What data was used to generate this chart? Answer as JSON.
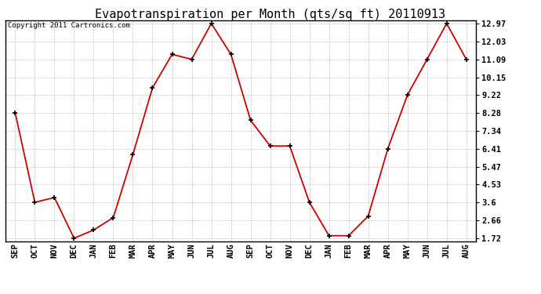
{
  "title": "Evapotranspiration per Month (qts/sq ft) 20110913",
  "copyright": "Copyright 2011 Cartronics.com",
  "months": [
    "SEP",
    "OCT",
    "NOV",
    "DEC",
    "JAN",
    "FEB",
    "MAR",
    "APR",
    "MAY",
    "JUN",
    "JUL",
    "AUG",
    "SEP",
    "OCT",
    "NOV",
    "DEC",
    "JAN",
    "FEB",
    "MAR",
    "APR",
    "MAY",
    "JUN",
    "JUL",
    "AUG"
  ],
  "values": [
    8.28,
    3.6,
    3.85,
    1.72,
    2.15,
    2.8,
    6.1,
    9.6,
    11.35,
    11.09,
    12.97,
    11.35,
    7.9,
    6.55,
    6.55,
    3.6,
    1.85,
    1.85,
    2.88,
    6.41,
    9.22,
    11.09,
    12.97,
    11.09
  ],
  "yticks": [
    1.72,
    2.66,
    3.6,
    4.53,
    5.47,
    6.41,
    7.34,
    8.28,
    9.22,
    10.15,
    11.09,
    12.03,
    12.97
  ],
  "line_color": "#cc0000",
  "marker_color": "#000000",
  "bg_color": "#ffffff",
  "grid_color": "#bbbbbb",
  "title_fontsize": 11,
  "copyright_fontsize": 6.5,
  "tick_fontsize": 7.5,
  "ylim_min": 1.72,
  "ylim_max": 12.97
}
